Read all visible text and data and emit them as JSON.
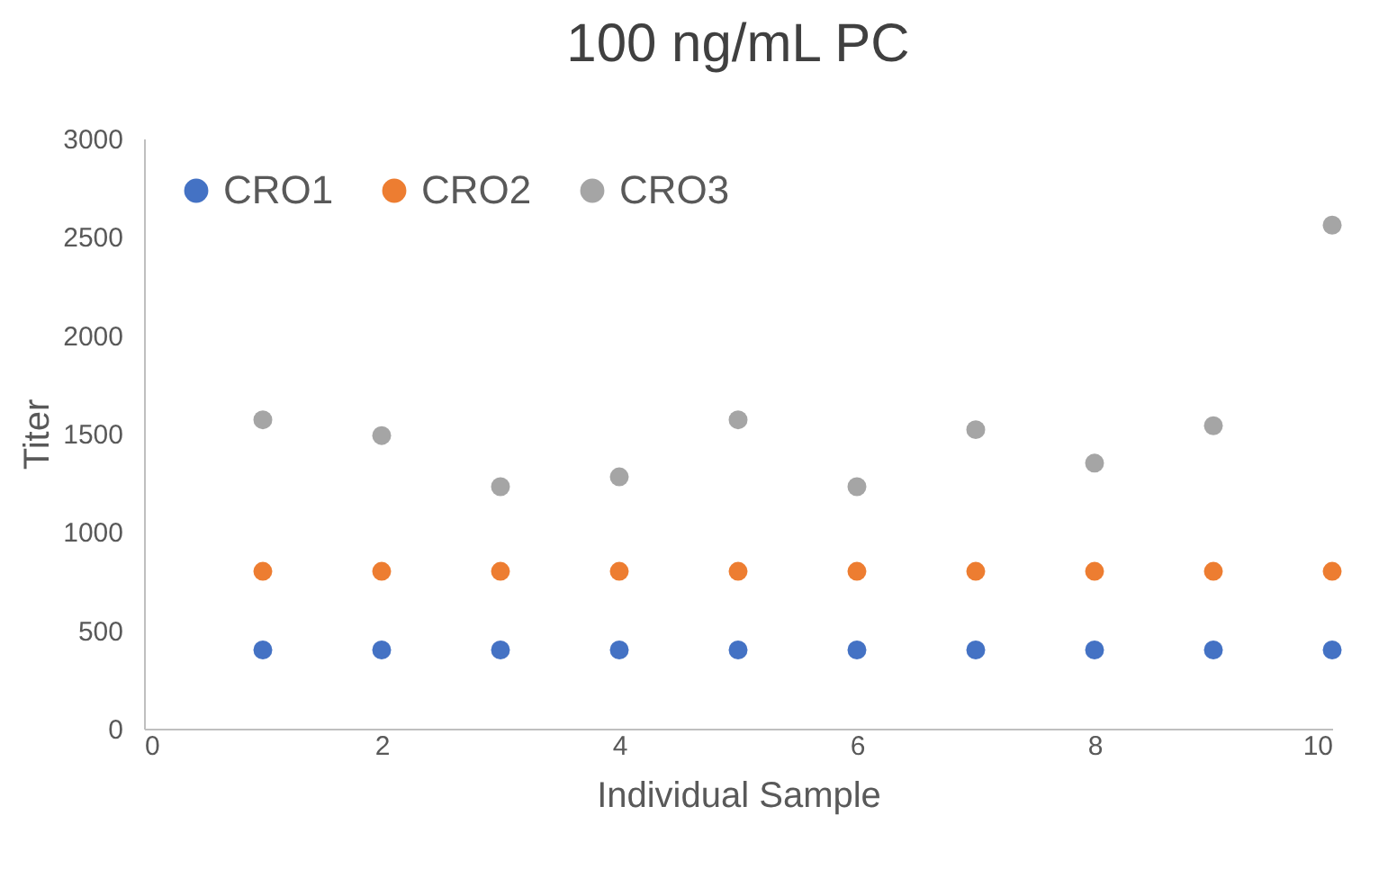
{
  "chart_data": {
    "type": "scatter",
    "title": "100 ng/mL PC",
    "xlabel": "Individual Sample",
    "ylabel": "Titer",
    "x": [
      1,
      2,
      3,
      4,
      5,
      6,
      7,
      8,
      9,
      10
    ],
    "series": [
      {
        "name": "CRO1",
        "color": "#4472c4",
        "values": [
          400,
          400,
          400,
          400,
          400,
          400,
          400,
          400,
          400,
          400
        ]
      },
      {
        "name": "CRO2",
        "color": "#ed7d31",
        "values": [
          800,
          800,
          800,
          800,
          800,
          800,
          800,
          800,
          800,
          800
        ]
      },
      {
        "name": "CRO3",
        "color": "#a5a5a5",
        "values": [
          1570,
          1490,
          1230,
          1280,
          1570,
          1230,
          1520,
          1350,
          1540,
          2560
        ]
      }
    ],
    "xlim": [
      0,
      10
    ],
    "xticks": [
      0,
      2,
      4,
      6,
      8,
      10
    ],
    "ylim": [
      0,
      3000
    ],
    "yticks": [
      0,
      500,
      1000,
      1500,
      2000,
      2500,
      3000
    ],
    "grid": false,
    "legend": "top left",
    "marker": "circle"
  }
}
